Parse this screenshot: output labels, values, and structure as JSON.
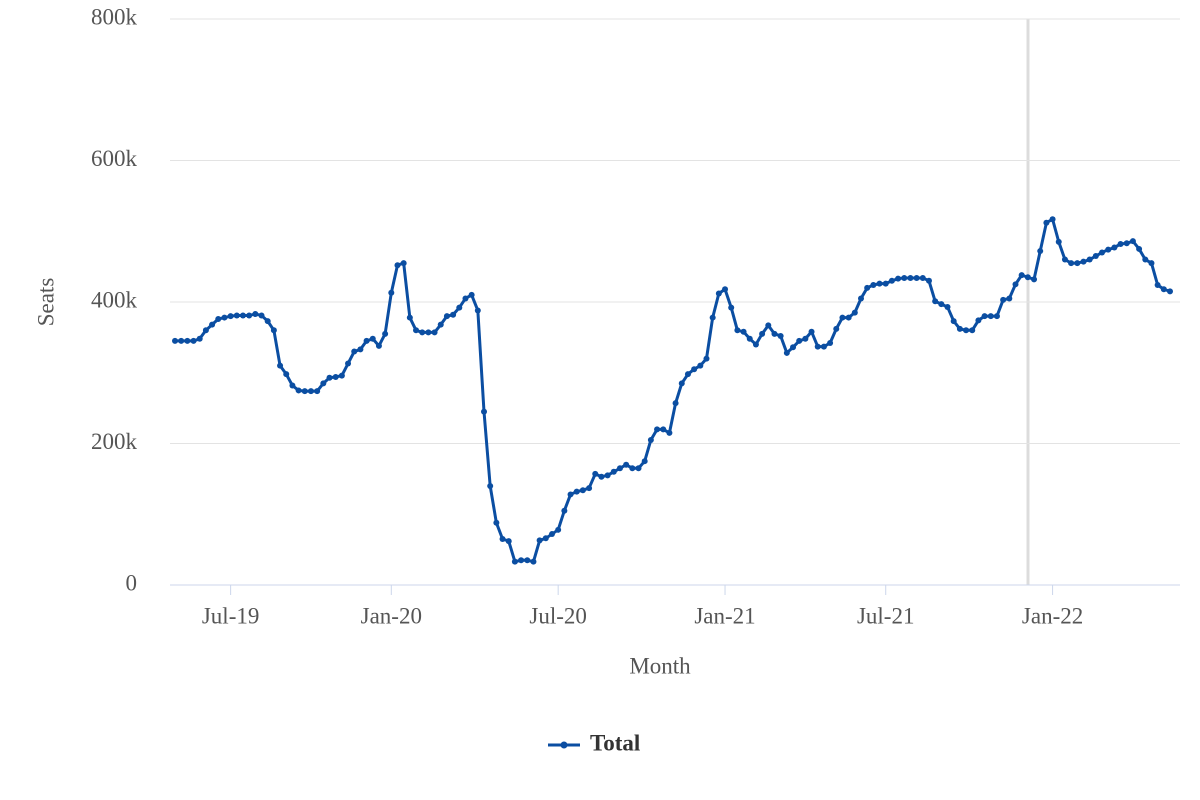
{
  "chart_data": {
    "type": "line",
    "x_label": "Month",
    "y_label": "Seats",
    "categories": [
      null,
      null,
      null,
      null,
      null,
      null,
      null,
      null,
      null,
      "Jul-19",
      null,
      null,
      null,
      null,
      null,
      null,
      null,
      null,
      null,
      null,
      null,
      null,
      null,
      null,
      null,
      null,
      null,
      null,
      null,
      null,
      null,
      null,
      null,
      null,
      null,
      "Jan-20",
      null,
      null,
      null,
      null,
      null,
      null,
      null,
      null,
      null,
      null,
      null,
      null,
      null,
      null,
      null,
      null,
      null,
      null,
      null,
      null,
      null,
      null,
      null,
      null,
      null,
      null,
      "Jul-20",
      null,
      null,
      null,
      null,
      null,
      null,
      null,
      null,
      null,
      null,
      null,
      null,
      null,
      null,
      null,
      null,
      null,
      null,
      null,
      null,
      null,
      null,
      null,
      null,
      null,
      null,
      "Jan-21",
      null,
      null,
      null,
      null,
      null,
      null,
      null,
      null,
      null,
      null,
      null,
      null,
      null,
      null,
      null,
      null,
      null,
      null,
      null,
      null,
      null,
      null,
      null,
      null,
      null,
      "Jul-21",
      null,
      null,
      null,
      null,
      null,
      null,
      null,
      null,
      null,
      null,
      null,
      null,
      null,
      null,
      null,
      null,
      null,
      null,
      null,
      null,
      null,
      null,
      null,
      null,
      null,
      null,
      "Jan-22",
      null,
      null,
      null,
      null,
      null,
      null,
      null,
      null,
      null,
      null,
      null,
      null,
      null,
      null,
      null,
      null,
      null,
      null,
      null
    ],
    "series": [
      {
        "name": "Total",
        "color": "#0b4ea2",
        "values": [
          345000,
          345000,
          345000,
          345000,
          348000,
          360000,
          368000,
          376000,
          378000,
          380000,
          381000,
          381000,
          381000,
          383000,
          381000,
          373000,
          360000,
          310000,
          298000,
          282000,
          275000,
          274000,
          274000,
          274000,
          285000,
          293000,
          294000,
          296000,
          313000,
          330000,
          333000,
          345000,
          348000,
          338000,
          355000,
          413000,
          452000,
          455000,
          378000,
          360000,
          357000,
          357000,
          357000,
          368000,
          380000,
          382000,
          392000,
          405000,
          410000,
          388000,
          245000,
          140000,
          88000,
          65000,
          62000,
          33000,
          35000,
          35000,
          33000,
          63000,
          66000,
          72000,
          78000,
          105000,
          128000,
          132000,
          134000,
          137000,
          157000,
          153000,
          155000,
          160000,
          165000,
          170000,
          165000,
          165000,
          175000,
          205000,
          220000,
          220000,
          215000,
          257000,
          285000,
          298000,
          305000,
          310000,
          320000,
          378000,
          412000,
          418000,
          392000,
          360000,
          358000,
          348000,
          340000,
          355000,
          367000,
          355000,
          352000,
          328000,
          336000,
          345000,
          348000,
          358000,
          337000,
          337000,
          342000,
          362000,
          378000,
          378000,
          385000,
          405000,
          420000,
          424000,
          426000,
          426000,
          430000,
          433000,
          434000,
          434000,
          434000,
          434000,
          430000,
          401000,
          397000,
          393000,
          373000,
          362000,
          360000,
          360000,
          374000,
          380000,
          380000,
          380000,
          403000,
          405000,
          425000,
          438000,
          435000,
          432000,
          472000,
          512000,
          517000,
          485000,
          460000,
          455000,
          455000,
          457000,
          460000,
          465000,
          470000,
          474000,
          477000,
          482000,
          483000,
          486000,
          475000,
          460000,
          455000,
          424000,
          418000,
          415000
        ]
      }
    ],
    "ylim": [
      0,
      800000
    ],
    "yticks": [
      0,
      {
        "value": 200000,
        "label": "200k"
      },
      {
        "value": 400000,
        "label": "400k"
      },
      {
        "value": 600000,
        "label": "600k"
      },
      {
        "value": 800000,
        "label": "800k"
      }
    ],
    "grid": true,
    "legend": "bottom"
  }
}
